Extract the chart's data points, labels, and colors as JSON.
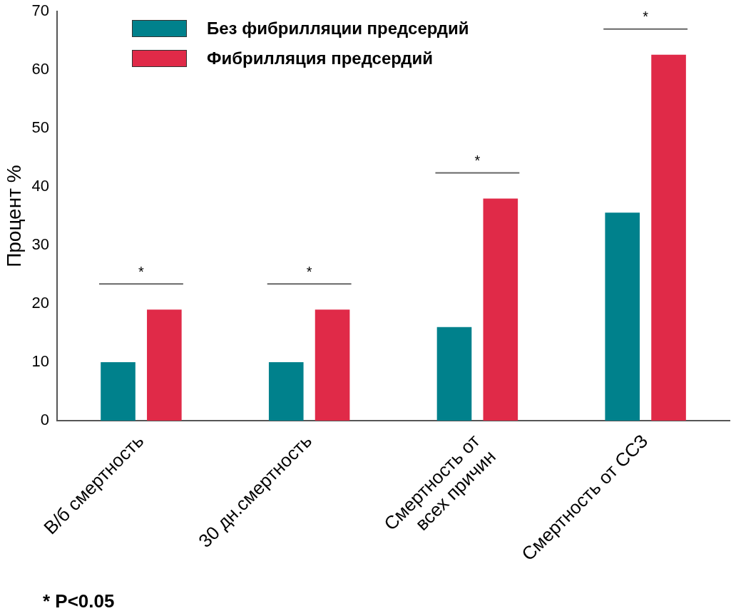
{
  "chart_data": {
    "type": "bar",
    "ylabel": "Процент %",
    "categories": [
      "В/б смертность",
      "30 дн.смертность",
      "Смертность от\nвсех причин",
      "Смертность от ССЗ"
    ],
    "series": [
      {
        "name": "Без фибрилляции предсердий",
        "color": "#00818c",
        "values": [
          10,
          10,
          16,
          35.6
        ]
      },
      {
        "name": "Фибрилляция предсердий",
        "color": "#e02a48",
        "values": [
          19,
          19,
          38,
          62.6
        ]
      }
    ],
    "ylim": [
      0,
      70
    ],
    "yticks": [
      0,
      10,
      20,
      30,
      40,
      50,
      60,
      70
    ],
    "grid": false,
    "legend": "top left",
    "annotations": [
      "*",
      "*",
      "*",
      "*",
      "* P<0.05"
    ]
  }
}
